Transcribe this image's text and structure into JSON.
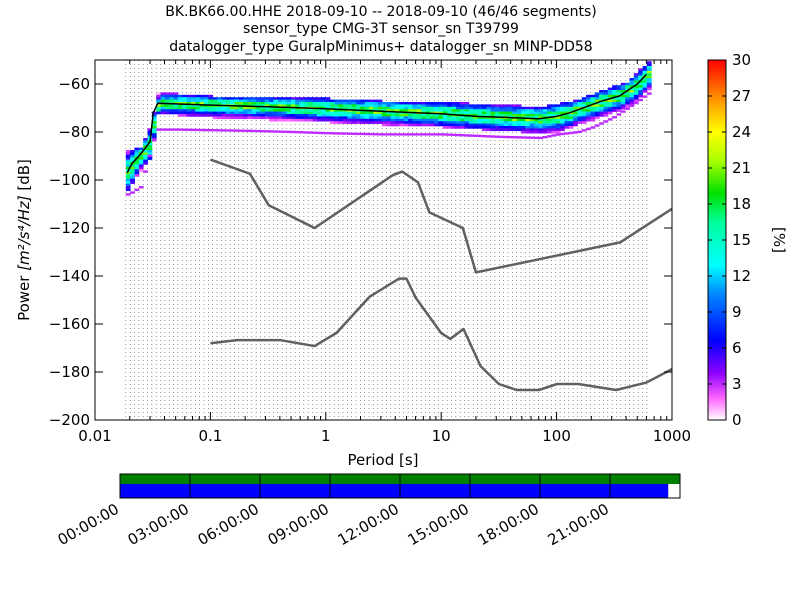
{
  "title_lines": [
    "BK.BK66.00.HHE   2018-09-10 -- 2018-09-10  (46/46 segments)",
    "sensor_type CMG-3T sensor_sn T39799",
    "datalogger_type GuralpMinimus+ datalogger_sn MINP-DD58"
  ],
  "colors": {
    "noise_model": "#606060",
    "mode_line": "#000000",
    "coverage_data": "#0000ff",
    "coverage_all": "#008000"
  },
  "chart_data": {
    "type": "heatmap",
    "xlabel": "Period [s]",
    "ylabel_prefix": "Power ",
    "ylabel_units": "[m²/s⁴/Hz]",
    "ylabel_suffix": " [dB]",
    "x_scale": "log",
    "xlim": [
      0.01,
      1000
    ],
    "ylim": [
      -200,
      -50
    ],
    "x_ticks": [
      {
        "v": 0.01,
        "label": "0.01"
      },
      {
        "v": 0.1,
        "label": "0.1"
      },
      {
        "v": 1,
        "label": "1"
      },
      {
        "v": 10,
        "label": "10"
      },
      {
        "v": 100,
        "label": "100"
      },
      {
        "v": 1000,
        "label": "1000"
      }
    ],
    "y_ticks": [
      -200,
      -180,
      -160,
      -140,
      -120,
      -100,
      -80,
      -60
    ],
    "grid": "dotted vertical lines at PSD period bins",
    "colorbar": {
      "label": "[%]",
      "min": 0,
      "max": 30,
      "ticks": [
        0,
        3,
        6,
        9,
        12,
        15,
        18,
        21,
        24,
        27,
        30
      ],
      "colormap": "pqlx"
    },
    "noise_models": [
      {
        "points": [
          [
            0.1,
            -91.5
          ],
          [
            0.22,
            -97.4
          ],
          [
            0.32,
            -110.5
          ],
          [
            0.8,
            -120
          ],
          [
            3.8,
            -98
          ],
          [
            4.6,
            -96.5
          ],
          [
            6.3,
            -101
          ],
          [
            7.9,
            -113.5
          ],
          [
            15.4,
            -120
          ],
          [
            20,
            -138.5
          ],
          [
            354.8,
            -126
          ],
          [
            1000,
            -112
          ]
        ]
      },
      {
        "points": [
          [
            0.1,
            -168
          ],
          [
            0.17,
            -166.7
          ],
          [
            0.4,
            -166.7
          ],
          [
            0.8,
            -169.2
          ],
          [
            1.24,
            -163.7
          ],
          [
            2.4,
            -148.6
          ],
          [
            4.3,
            -141.1
          ],
          [
            5,
            -141.1
          ],
          [
            6,
            -149
          ],
          [
            10,
            -163.8
          ],
          [
            12,
            -166.2
          ],
          [
            15.6,
            -162.1
          ],
          [
            21.9,
            -177.5
          ],
          [
            31.6,
            -185
          ],
          [
            45,
            -187.5
          ],
          [
            70,
            -187.5
          ],
          [
            101,
            -185
          ],
          [
            154,
            -185
          ],
          [
            328,
            -187.5
          ],
          [
            600,
            -184.4
          ],
          [
            1000,
            -178.8
          ]
        ]
      }
    ],
    "mode": [
      [
        0.019,
        -97
      ],
      [
        0.021,
        -93
      ],
      [
        0.024,
        -90
      ],
      [
        0.027,
        -87
      ],
      [
        0.03,
        -84
      ],
      [
        0.032,
        -72
      ],
      [
        0.035,
        -68
      ],
      [
        0.05,
        -68.3
      ],
      [
        0.1,
        -68.8
      ],
      [
        0.2,
        -69.2
      ],
      [
        0.5,
        -69.8
      ],
      [
        1,
        -70.3
      ],
      [
        2,
        -71
      ],
      [
        5,
        -71.8
      ],
      [
        10,
        -72.4
      ],
      [
        20,
        -73.5
      ],
      [
        40,
        -74
      ],
      [
        70,
        -74.5
      ],
      [
        100,
        -73.5
      ],
      [
        130,
        -72
      ],
      [
        180,
        -69.5
      ],
      [
        250,
        -67
      ],
      [
        350,
        -65
      ],
      [
        500,
        -60
      ],
      [
        600,
        -56
      ]
    ],
    "psd_distribution": {
      "band_top_db": [
        [
          0.019,
          -88
        ],
        [
          0.024,
          -86
        ],
        [
          0.03,
          -76
        ],
        [
          0.033,
          -64
        ],
        [
          0.05,
          -64
        ],
        [
          0.1,
          -65
        ],
        [
          0.3,
          -66
        ],
        [
          1,
          -66
        ],
        [
          3,
          -67
        ],
        [
          10,
          -67.5
        ],
        [
          30,
          -68.5
        ],
        [
          70,
          -69.5
        ],
        [
          100,
          -68
        ],
        [
          150,
          -66.5
        ],
        [
          200,
          -64
        ],
        [
          300,
          -61
        ],
        [
          400,
          -59
        ],
        [
          500,
          -54
        ],
        [
          600,
          -51
        ]
      ],
      "band_bottom_db": [
        [
          0.019,
          -104
        ],
        [
          0.024,
          -96
        ],
        [
          0.03,
          -90
        ],
        [
          0.033,
          -72
        ],
        [
          0.05,
          -73
        ],
        [
          0.1,
          -74
        ],
        [
          0.3,
          -75
        ],
        [
          1,
          -76
        ],
        [
          3,
          -77
        ],
        [
          10,
          -78
        ],
        [
          30,
          -79.5
        ],
        [
          70,
          -80.5
        ],
        [
          100,
          -80
        ],
        [
          150,
          -77
        ],
        [
          200,
          -75
        ],
        [
          300,
          -72
        ],
        [
          400,
          -70
        ],
        [
          500,
          -66
        ],
        [
          600,
          -62
        ]
      ],
      "outlier_low_db": [
        [
          0.019,
          -106
        ],
        [
          0.024,
          -103
        ],
        [
          0.033,
          -79
        ],
        [
          0.05,
          -79
        ],
        [
          0.2,
          -79.5
        ],
        [
          0.5,
          -80
        ],
        [
          1,
          -80.5
        ],
        [
          3,
          -81
        ],
        [
          10,
          -81
        ],
        [
          30,
          -82
        ],
        [
          70,
          -82.5
        ],
        [
          100,
          -81
        ],
        [
          150,
          -80
        ],
        [
          200,
          -78
        ],
        [
          300,
          -74
        ],
        [
          500,
          -67
        ],
        [
          600,
          -64
        ]
      ]
    }
  },
  "coverage": {
    "time_labels": [
      "00:00:00",
      "03:00:00",
      "06:00:00",
      "09:00:00",
      "12:00:00",
      "15:00:00",
      "18:00:00",
      "21:00:00"
    ],
    "data_fraction": 0.979
  }
}
